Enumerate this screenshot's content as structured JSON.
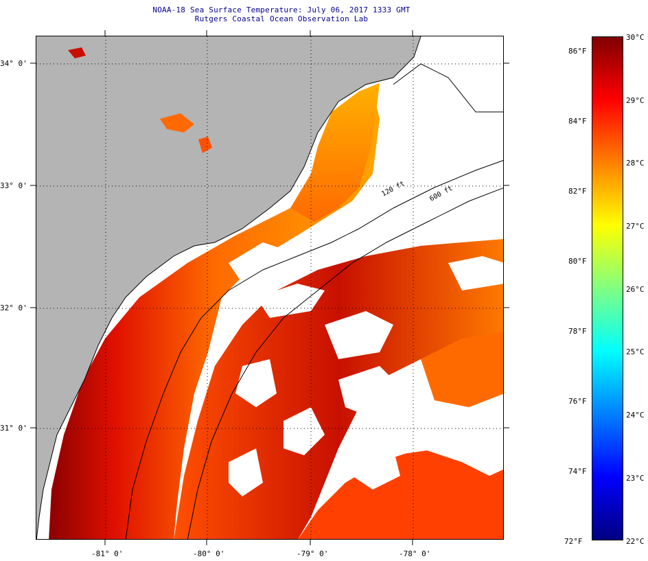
{
  "title_line1": "NOAA-18 Sea Surface Temperature:  July 06, 2017 1333 GMT",
  "title_line2": "Rutgers Coastal Ocean Observation Lab",
  "map": {
    "lat_labels": [
      "34° 0'",
      "33° 0'",
      "32° 0'",
      "31° 0'"
    ],
    "lon_labels": [
      "-81° 0'",
      "-80° 0'",
      "-79° 0'",
      "-78° 0'"
    ],
    "contour_labels": [
      "120 ft",
      "600 ft"
    ],
    "colors": {
      "land": "#b4b4b4",
      "no_data": "#ffffff",
      "coastline": "#000000"
    }
  },
  "colorbar": {
    "f_labels": [
      "86°F",
      "84°F",
      "82°F",
      "80°F",
      "78°F",
      "76°F",
      "74°F",
      "72°F"
    ],
    "c_labels": [
      "30°C",
      "29°C",
      "28°C",
      "27°C",
      "26°C",
      "25°C",
      "24°C",
      "23°C",
      "22°C"
    ],
    "stops": [
      "#000080",
      "#0000ff",
      "#0080ff",
      "#00ffff",
      "#80ff80",
      "#ffff00",
      "#ff8000",
      "#ff0000",
      "#800000"
    ]
  }
}
